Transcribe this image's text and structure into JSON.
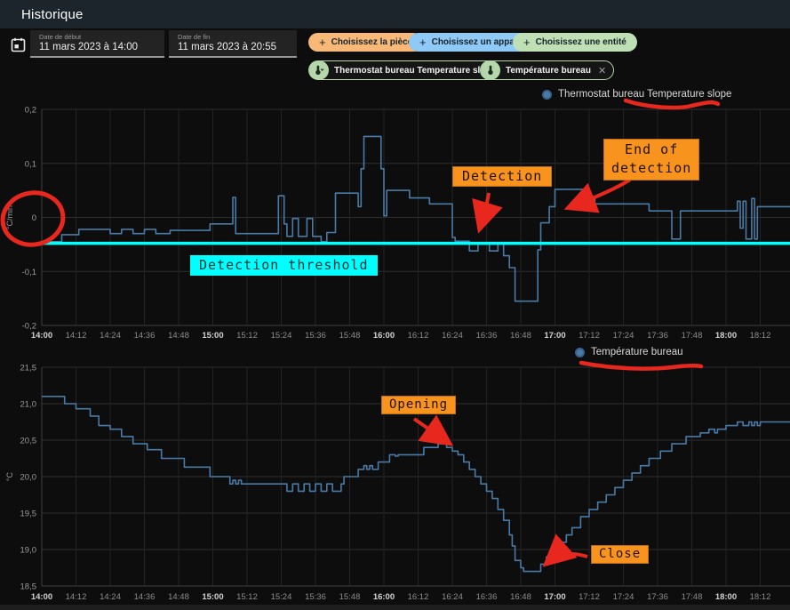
{
  "app": {
    "title": "Historique"
  },
  "controls": {
    "date_start": {
      "label": "Date de début",
      "value": "11 mars 2023 à 14:00"
    },
    "date_end": {
      "label": "Date de fin",
      "value": "11 mars 2023 à 20:55"
    },
    "pickers": [
      {
        "label": "Choisissez la pièce",
        "color": "#f8b878"
      },
      {
        "label": "Choisissez un appareil",
        "color": "#8fc9f5"
      },
      {
        "label": "Choisissez une entité",
        "color": "#bfe0b4"
      }
    ],
    "chips": [
      {
        "label": "Thermostat bureau Temperature slope",
        "close": "✕"
      },
      {
        "label": "Température bureau",
        "close": "✕"
      }
    ],
    "plus": "+"
  },
  "annotations": {
    "detection": "Detection",
    "end_detection": [
      "End of",
      "detection"
    ],
    "threshold": "Detection threshold",
    "opening": "Opening",
    "close": "Close"
  },
  "chart_data": [
    {
      "type": "line",
      "title": "Thermostat bureau Temperature slope",
      "legend": "Thermostat bureau Temperature slope",
      "ylabel": "°C/min",
      "ylim": [
        -0.2,
        0.2
      ],
      "grid": true,
      "legend_position": "top-right",
      "yticks": [
        {
          "v": 0.2,
          "label": "0,2"
        },
        {
          "v": 0.1,
          "label": "0,1"
        },
        {
          "v": 0,
          "label": "0"
        },
        {
          "v": -0.1,
          "label": "-0,1"
        },
        {
          "v": -0.2,
          "label": "-0,2"
        }
      ],
      "xticks": [
        "14:00",
        "14:12",
        "14:24",
        "14:36",
        "14:48",
        "15:00",
        "15:12",
        "15:24",
        "15:36",
        "15:48",
        "16:00",
        "16:12",
        "16:24",
        "16:36",
        "16:48",
        "17:00",
        "17:12",
        "17:24",
        "17:36",
        "17:48",
        "18:00",
        "18:12"
      ],
      "xrange_minutes": [
        0,
        262
      ],
      "threshold": {
        "value": -0.048,
        "label": "Detection threshold",
        "color": "#00ffff"
      },
      "series": [
        {
          "name": "Thermostat bureau Temperature slope",
          "color": "#4a7ba6",
          "step": true,
          "points": [
            [
              0,
              -0.045
            ],
            [
              7,
              -0.032
            ],
            [
              13,
              -0.022
            ],
            [
              24,
              -0.03
            ],
            [
              28,
              -0.022
            ],
            [
              32,
              -0.03
            ],
            [
              36,
              -0.022
            ],
            [
              40,
              -0.03
            ],
            [
              45,
              -0.024
            ],
            [
              57,
              -0.024
            ],
            [
              59,
              -0.012
            ],
            [
              66,
              -0.012
            ],
            [
              67,
              0.037
            ],
            [
              68,
              -0.03
            ],
            [
              82,
              -0.03
            ],
            [
              83,
              0.04
            ],
            [
              85,
              -0.012
            ],
            [
              86,
              -0.035
            ],
            [
              88,
              -0.002
            ],
            [
              90,
              -0.035
            ],
            [
              93,
              -0.002
            ],
            [
              95,
              -0.035
            ],
            [
              98,
              -0.045
            ],
            [
              100,
              -0.028
            ],
            [
              103,
              0.045
            ],
            [
              109,
              0.045
            ],
            [
              111,
              0.02
            ],
            [
              112,
              0.09
            ],
            [
              113,
              0.15
            ],
            [
              118,
              0.15
            ],
            [
              119,
              0.09
            ],
            [
              120,
              0.003
            ],
            [
              121,
              0.05
            ],
            [
              127,
              0.05
            ],
            [
              129,
              0.036
            ],
            [
              136,
              0.025
            ],
            [
              144,
              -0.037
            ],
            [
              145,
              -0.044
            ],
            [
              150,
              -0.062
            ],
            [
              153,
              -0.048
            ],
            [
              157,
              -0.062
            ],
            [
              160,
              -0.048
            ],
            [
              162,
              -0.071
            ],
            [
              164,
              -0.093
            ],
            [
              166,
              -0.155
            ],
            [
              173,
              -0.155
            ],
            [
              174,
              -0.06
            ],
            [
              175,
              -0.01
            ],
            [
              178,
              0.02
            ],
            [
              180,
              0.052
            ],
            [
              188,
              0.052
            ],
            [
              190,
              0.036
            ],
            [
              194,
              0.025
            ],
            [
              211,
              0.025
            ],
            [
              213,
              0.012
            ],
            [
              220,
              0.012
            ],
            [
              221,
              -0.04
            ],
            [
              223,
              -0.04
            ],
            [
              224,
              0.012
            ],
            [
              242,
              0.012
            ],
            [
              244,
              0.03
            ],
            [
              245,
              -0.02
            ],
            [
              246,
              0.03
            ],
            [
              247,
              -0.04
            ],
            [
              249,
              0.035
            ],
            [
              250,
              -0.04
            ],
            [
              251,
              0.02
            ],
            [
              262,
              0.02
            ]
          ]
        }
      ]
    },
    {
      "type": "line",
      "title": "Température bureau",
      "legend": "Température bureau",
      "ylabel": "°C",
      "ylim": [
        18.5,
        21.5
      ],
      "grid": true,
      "legend_position": "top-right",
      "yticks": [
        {
          "v": 21.5,
          "label": "21,5"
        },
        {
          "v": 21.0,
          "label": "21,0"
        },
        {
          "v": 20.5,
          "label": "20,5"
        },
        {
          "v": 20.0,
          "label": "20,0"
        },
        {
          "v": 19.5,
          "label": "19,5"
        },
        {
          "v": 19.0,
          "label": "19,0"
        },
        {
          "v": 18.5,
          "label": "18,5"
        }
      ],
      "xticks": [
        "14:00",
        "14:12",
        "14:24",
        "14:36",
        "14:48",
        "15:00",
        "15:12",
        "15:24",
        "15:36",
        "15:48",
        "16:00",
        "16:12",
        "16:24",
        "16:36",
        "16:48",
        "17:00",
        "17:12",
        "17:24",
        "17:36",
        "17:48",
        "18:00",
        "18:12"
      ],
      "xrange_minutes": [
        0,
        262
      ],
      "series": [
        {
          "name": "Température bureau",
          "color": "#4a7ba6",
          "step": true,
          "points": [
            [
              0,
              21.1
            ],
            [
              8,
              21.0
            ],
            [
              12,
              20.93
            ],
            [
              17,
              20.83
            ],
            [
              20,
              20.7
            ],
            [
              24,
              20.65
            ],
            [
              28,
              20.55
            ],
            [
              32,
              20.45
            ],
            [
              37,
              20.37
            ],
            [
              42,
              20.25
            ],
            [
              50,
              20.13
            ],
            [
              59,
              20.0
            ],
            [
              66,
              19.9
            ],
            [
              67,
              19.95
            ],
            [
              68,
              19.9
            ],
            [
              69,
              19.95
            ],
            [
              70,
              19.9
            ],
            [
              85,
              19.9
            ],
            [
              86,
              19.8
            ],
            [
              88,
              19.9
            ],
            [
              90,
              19.8
            ],
            [
              92,
              19.9
            ],
            [
              94,
              19.8
            ],
            [
              96,
              19.9
            ],
            [
              98,
              19.8
            ],
            [
              100,
              19.9
            ],
            [
              102,
              19.8
            ],
            [
              105,
              19.9
            ],
            [
              106,
              20.0
            ],
            [
              111,
              20.1
            ],
            [
              113,
              20.15
            ],
            [
              114,
              20.1
            ],
            [
              115,
              20.15
            ],
            [
              116,
              20.1
            ],
            [
              118,
              20.2
            ],
            [
              122,
              20.3
            ],
            [
              124,
              20.28
            ],
            [
              125,
              20.3
            ],
            [
              134,
              20.4
            ],
            [
              139,
              20.45
            ],
            [
              142,
              20.4
            ],
            [
              144,
              20.35
            ],
            [
              146,
              20.3
            ],
            [
              148,
              20.2
            ],
            [
              150,
              20.1
            ],
            [
              152,
              20.0
            ],
            [
              154,
              19.9
            ],
            [
              156,
              19.8
            ],
            [
              158,
              19.7
            ],
            [
              160,
              19.55
            ],
            [
              162,
              19.4
            ],
            [
              164,
              19.2
            ],
            [
              165,
              19.05
            ],
            [
              166,
              18.85
            ],
            [
              168,
              18.75
            ],
            [
              169,
              18.7
            ],
            [
              174,
              18.7
            ],
            [
              175,
              18.8
            ],
            [
              177,
              18.9
            ],
            [
              179,
              19.0
            ],
            [
              181,
              19.1
            ],
            [
              184,
              19.2
            ],
            [
              186,
              19.3
            ],
            [
              189,
              19.45
            ],
            [
              192,
              19.55
            ],
            [
              195,
              19.65
            ],
            [
              198,
              19.75
            ],
            [
              201,
              19.85
            ],
            [
              204,
              19.95
            ],
            [
              207,
              20.05
            ],
            [
              210,
              20.15
            ],
            [
              213,
              20.25
            ],
            [
              217,
              20.35
            ],
            [
              221,
              20.45
            ],
            [
              226,
              20.55
            ],
            [
              231,
              20.6
            ],
            [
              234,
              20.65
            ],
            [
              236,
              20.6
            ],
            [
              237,
              20.65
            ],
            [
              240,
              20.7
            ],
            [
              244,
              20.75
            ],
            [
              246,
              20.7
            ],
            [
              248,
              20.75
            ],
            [
              249,
              20.7
            ],
            [
              250,
              20.75
            ],
            [
              251,
              20.7
            ],
            [
              252,
              20.75
            ],
            [
              262,
              20.75
            ]
          ]
        }
      ]
    }
  ]
}
